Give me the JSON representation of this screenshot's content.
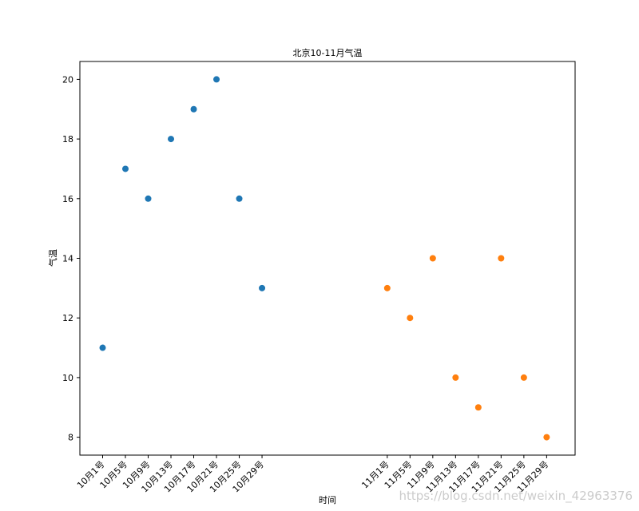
{
  "chart_data": {
    "type": "scatter",
    "title": "北京10-11月气温",
    "xlabel": "时间",
    "ylabel": "气温",
    "ylim": [
      7.4,
      20.6
    ],
    "yticks": [
      8,
      10,
      12,
      14,
      16,
      18,
      20
    ],
    "grid": false,
    "x_ticks": [
      {
        "index": 0,
        "label": "10月1号"
      },
      {
        "index": 4,
        "label": "10月5号"
      },
      {
        "index": 8,
        "label": "10月9号"
      },
      {
        "index": 12,
        "label": "10月13号"
      },
      {
        "index": 16,
        "label": "10月17号"
      },
      {
        "index": 20,
        "label": "10月21号"
      },
      {
        "index": 24,
        "label": "10月25号"
      },
      {
        "index": 28,
        "label": "10月29号"
      },
      {
        "index": 50,
        "label": "11月1号"
      },
      {
        "index": 54,
        "label": "11月5号"
      },
      {
        "index": 58,
        "label": "11月9号"
      },
      {
        "index": 62,
        "label": "11月13号"
      },
      {
        "index": 66,
        "label": "11月17号"
      },
      {
        "index": 70,
        "label": "11月21号"
      },
      {
        "index": 74,
        "label": "11月25号"
      },
      {
        "index": 78,
        "label": "11月29号"
      }
    ],
    "xlim": [
      -4,
      83
    ],
    "series": [
      {
        "color": "#1f77b4",
        "points": [
          [
            0,
            11
          ],
          [
            4,
            17
          ],
          [
            8,
            16
          ],
          [
            12,
            18
          ],
          [
            16,
            19
          ],
          [
            20,
            20
          ],
          [
            24,
            16
          ],
          [
            28,
            13
          ]
        ]
      },
      {
        "color": "#ff7f0e",
        "points": [
          [
            50,
            13
          ],
          [
            54,
            12
          ],
          [
            58,
            14
          ],
          [
            62,
            10
          ],
          [
            66,
            9
          ],
          [
            70,
            14
          ],
          [
            74,
            10
          ],
          [
            78,
            8
          ]
        ]
      }
    ]
  },
  "watermark": "https://blog.csdn.net/weixin_42963376"
}
